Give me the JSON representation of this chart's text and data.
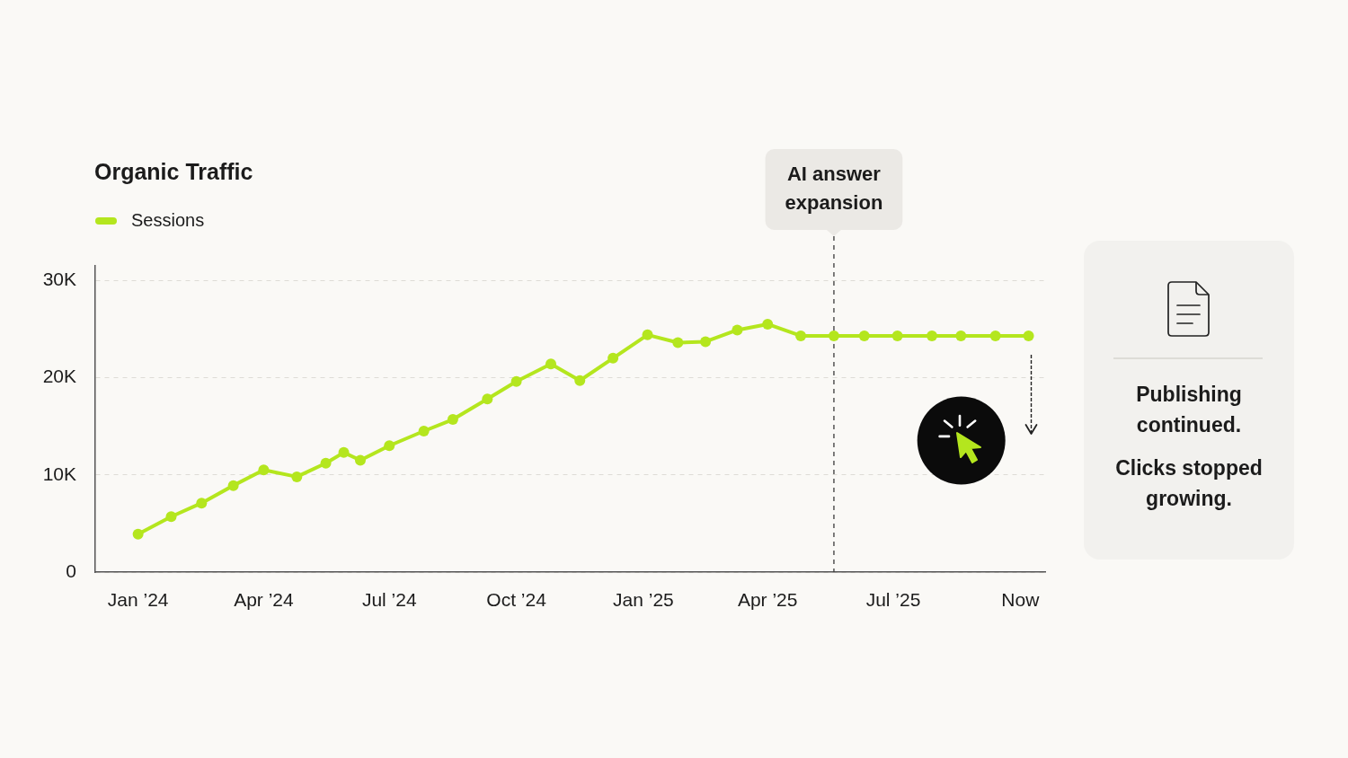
{
  "chart_data": {
    "type": "line",
    "title": "Organic Traffic",
    "x": [
      "2024-01-01",
      "2024-01-25",
      "2024-02-16",
      "2024-03-10",
      "2024-04-01",
      "2024-04-25",
      "2024-05-16",
      "2024-05-29",
      "2024-06-10",
      "2024-07-01",
      "2024-07-26",
      "2024-08-16",
      "2024-09-10",
      "2024-10-01",
      "2024-10-26",
      "2024-11-16",
      "2024-12-10",
      "2025-01-04",
      "2025-01-26",
      "2025-02-15",
      "2025-03-10",
      "2025-04-01",
      "2025-04-25",
      "2025-05-19",
      "2025-06-10",
      "2025-07-04",
      "2025-07-29",
      "2025-08-19",
      "2025-09-13",
      "2025-10-07"
    ],
    "series": [
      {
        "name": "Sessions",
        "color": "#b4e61e",
        "values": [
          3900,
          5700,
          7100,
          8900,
          10500,
          9800,
          11200,
          12300,
          11500,
          13000,
          14500,
          15700,
          17800,
          19600,
          21400,
          19700,
          22000,
          24400,
          23600,
          23700,
          24900,
          25500,
          24300,
          24300,
          24300,
          24300,
          24300,
          24300,
          24300,
          24300
        ]
      }
    ],
    "xlim": [
      "2023-12-01",
      "2025-10-19"
    ],
    "xticks": [
      {
        "value": "2024-01-01",
        "label": "Jan ’24"
      },
      {
        "value": "2024-04-01",
        "label": "Apr ’24"
      },
      {
        "value": "2024-07-01",
        "label": "Jul ’24"
      },
      {
        "value": "2024-10-01",
        "label": "Oct ’24"
      },
      {
        "value": "2025-01-01",
        "label": "Jan ’25"
      },
      {
        "value": "2025-04-01",
        "label": "Apr ’25"
      },
      {
        "value": "2025-07-01",
        "label": "Jul ’25"
      },
      {
        "value": "2025-10-01",
        "label": "Now"
      }
    ],
    "ylim": [
      0,
      31500
    ],
    "yticks": [
      0,
      {
        "value": 10000,
        "label": "10K"
      },
      {
        "value": 20000,
        "label": "20K"
      },
      {
        "value": 30000,
        "label": "30K"
      }
    ],
    "grid": "y",
    "legend": "top left",
    "marker": "circle",
    "line_style": "solid",
    "ref_lines": [
      {
        "axis": "x",
        "value": "2025-05-19",
        "label": "AI answer expansion",
        "color": "#3a3a3a",
        "line_style": "dashed"
      }
    ],
    "annotations": [
      "Publishing continued.",
      "Clicks stopped growing."
    ]
  }
}
